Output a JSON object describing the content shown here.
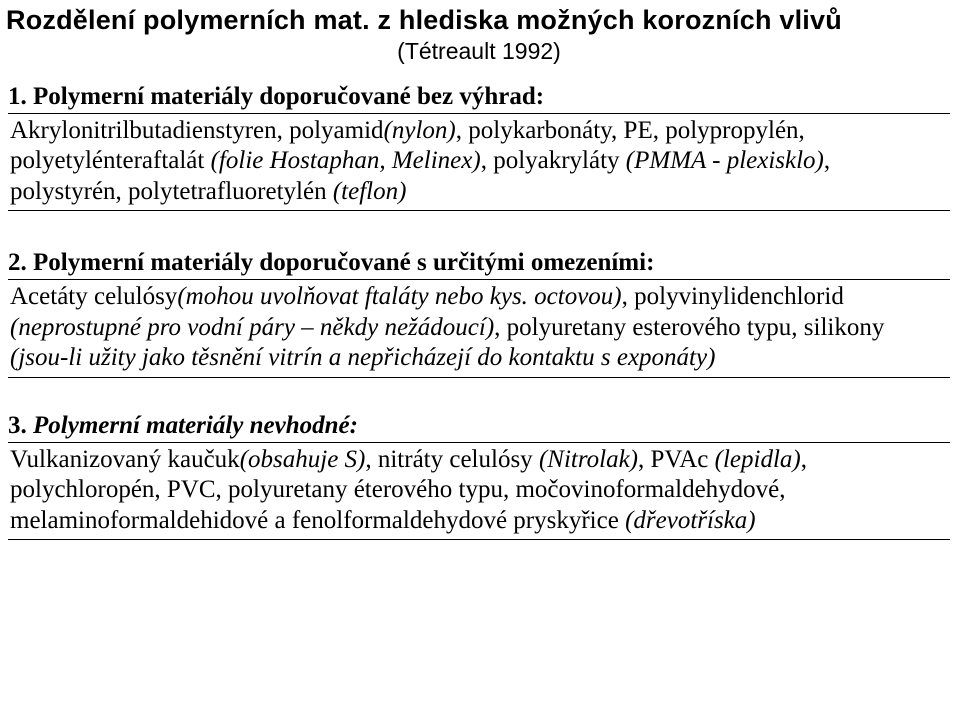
{
  "title": "Rozdělení polymerních mat. z hlediska možných korozních vlivů",
  "subtitle": "(Tétreault 1992)",
  "sections": [
    {
      "idx": "1.",
      "heading": "Polymerní materiály doporučované bez výhrad:",
      "body_pre": "Akrylonitrilbutadienstyren, polyamid",
      "body_i1": "(nylon)",
      "body_mid1": ", polykarbonáty, PE, polypropylén, polyetylénteraftalát ",
      "body_i2": "(folie Hostaphan, Melinex)",
      "body_mid2": ", polyakryláty ",
      "body_i3": "(PMMA - plexisklo)",
      "body_mid3": ", polystyrén, polytetrafluoretylén ",
      "body_i4": "(teflon)"
    },
    {
      "idx": "2.",
      "heading": "Polymerní materiály doporučované s určitými omezeními:",
      "body_pre": "Acetáty celulósy",
      "body_i1": "(mohou uvolňovat ftaláty nebo kys. octovou)",
      "body_mid1": ", polyvinylidenchlorid ",
      "body_i2": "(neprostupné pro vodní páry – někdy nežádoucí)",
      "body_mid2": ", polyuretany esterového typu, silikony ",
      "body_i3": "(jsou-li užity jako těsnění vitrín a nepřicházejí do kontaktu s exponáty)"
    },
    {
      "idx": "3.",
      "heading_italic": "Polymerní materiály nevhodné:",
      "body_pre": "Vulkanizovaný kaučuk",
      "body_i1": "(obsahuje S)",
      "body_mid1": ", nitráty celulósy ",
      "body_i2": "(Nitrolak)",
      "body_mid2": ", PVAc ",
      "body_i3": "(lepidla)",
      "body_mid3": ", polychloropén, PVC, polyuretany éterového typu, močovinoformaldehydové, melaminoformaldehidové a fenolformaldehydové pryskyřice ",
      "body_i4": "(dřevotříska)"
    }
  ]
}
